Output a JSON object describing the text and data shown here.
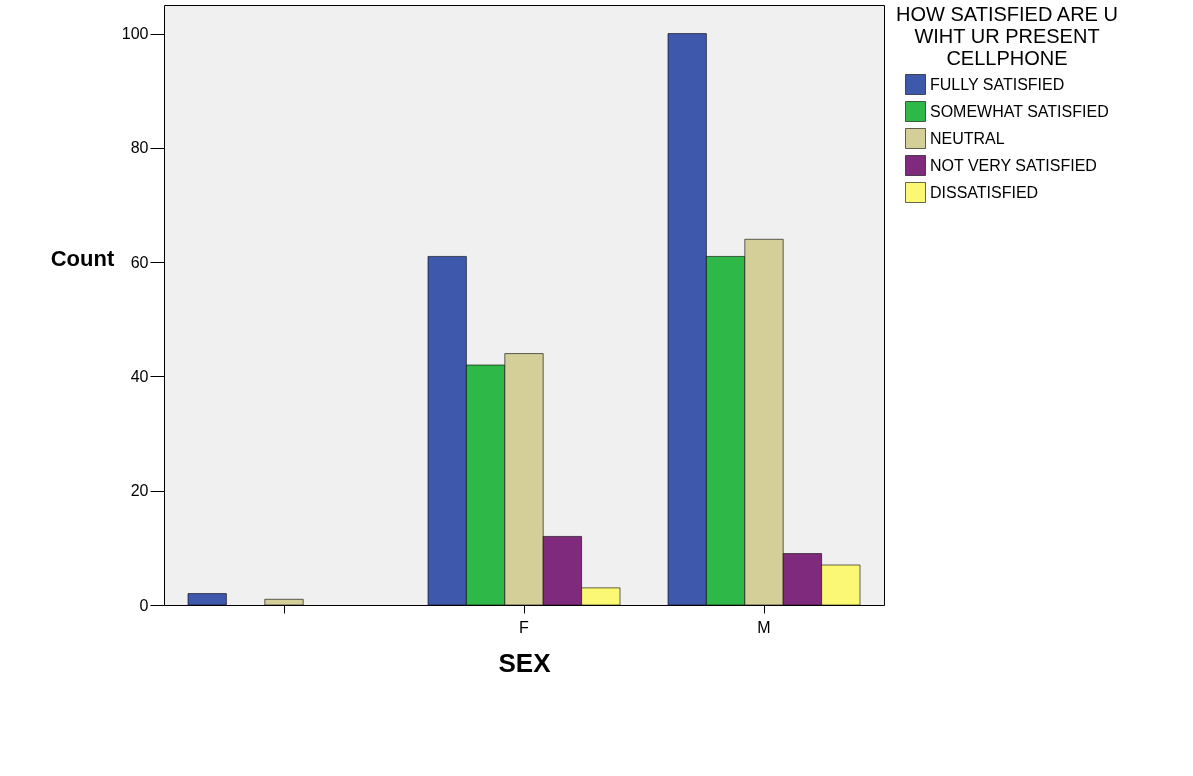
{
  "chart_data": {
    "type": "bar",
    "xlabel": "SEX",
    "ylabel": "Count",
    "legend_title": "HOW SATISFIED ARE U WIHT UR PRESENT CELLPHONE",
    "categories": [
      null,
      "F",
      "M"
    ],
    "series": [
      {
        "name": "FULLY SATISFIED",
        "color": "#3e58ac",
        "values": [
          2,
          61,
          100
        ]
      },
      {
        "name": "SOMEWHAT SATISFIED",
        "color": "#2eb848",
        "values": [
          null,
          42,
          61
        ]
      },
      {
        "name": "NEUTRAL",
        "color": "#d4ce98",
        "values": [
          1,
          44,
          64
        ]
      },
      {
        "name": "NOT VERY SATISFIED",
        "color": "#7f2a7c",
        "values": [
          null,
          12,
          9
        ]
      },
      {
        "name": "DISSATISFIED",
        "color": "#fbf873",
        "values": [
          null,
          3,
          7
        ]
      }
    ],
    "ylim": [
      0,
      105
    ],
    "yticks": [
      0,
      20,
      40,
      60,
      80,
      100
    ],
    "grid": false,
    "legend": "right"
  }
}
